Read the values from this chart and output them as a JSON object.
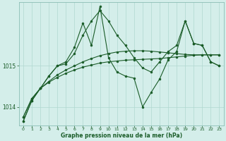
{
  "background_color": "#d4eeea",
  "plot_bg_color": "#d4eeea",
  "line_color": "#1a5c28",
  "grid_color": "#b0d8d0",
  "xlabel": "Graphe pression niveau de la mer (hPa)",
  "ylim": [
    1013.55,
    1016.55
  ],
  "xlim": [
    -0.5,
    23.5
  ],
  "yticks": [
    1014,
    1015
  ],
  "xticks": [
    0,
    1,
    2,
    3,
    4,
    5,
    6,
    7,
    8,
    9,
    10,
    11,
    12,
    13,
    14,
    15,
    16,
    17,
    18,
    19,
    20,
    21,
    22,
    23
  ],
  "series1_smooth_low": {
    "x": [
      0,
      1,
      2,
      3,
      4,
      5,
      6,
      7,
      8,
      9,
      10,
      11,
      12,
      13,
      14,
      15,
      16,
      17,
      18,
      19,
      20,
      21,
      22,
      23
    ],
    "y": [
      1013.75,
      1014.2,
      1014.45,
      1014.6,
      1014.72,
      1014.82,
      1014.9,
      1014.97,
      1015.02,
      1015.07,
      1015.1,
      1015.12,
      1015.14,
      1015.15,
      1015.16,
      1015.17,
      1015.18,
      1015.2,
      1015.22,
      1015.24,
      1015.26,
      1015.27,
      1015.27,
      1015.27
    ]
  },
  "series2_smooth_mid": {
    "x": [
      0,
      1,
      2,
      3,
      4,
      5,
      6,
      7,
      8,
      9,
      10,
      11,
      12,
      13,
      14,
      15,
      16,
      17,
      18,
      19,
      20,
      21,
      22,
      23
    ],
    "y": [
      1013.75,
      1014.2,
      1014.45,
      1014.62,
      1014.78,
      1014.9,
      1015.0,
      1015.1,
      1015.18,
      1015.25,
      1015.3,
      1015.34,
      1015.36,
      1015.37,
      1015.37,
      1015.36,
      1015.34,
      1015.32,
      1015.3,
      1015.28,
      1015.27,
      1015.27,
      1015.27,
      1015.27
    ]
  },
  "series3_main": {
    "x": [
      0,
      1,
      2,
      3,
      4,
      5,
      6,
      7,
      8,
      9,
      10,
      11,
      12,
      13,
      14,
      15,
      16,
      17,
      18,
      19,
      20,
      21,
      22,
      23
    ],
    "y": [
      1013.65,
      1014.15,
      1014.45,
      1014.75,
      1015.0,
      1015.05,
      1015.3,
      1015.75,
      1016.1,
      1016.35,
      1016.1,
      1015.75,
      1015.5,
      1015.2,
      1014.95,
      1014.85,
      1015.1,
      1015.35,
      1015.5,
      1016.1,
      1015.55,
      1015.5,
      1015.1,
      1015.0
    ]
  },
  "series4_jagged": {
    "x": [
      0,
      1,
      2,
      3,
      4,
      5,
      6,
      7,
      8,
      9,
      10,
      11,
      12,
      13,
      14,
      15,
      16,
      17,
      18,
      19,
      20,
      21,
      22,
      23
    ],
    "y": [
      1013.65,
      1014.15,
      1014.45,
      1014.75,
      1015.0,
      1015.1,
      1015.45,
      1016.05,
      1015.5,
      1016.45,
      1015.2,
      1014.85,
      1014.75,
      1014.7,
      1014.0,
      1014.35,
      1014.68,
      1015.15,
      1015.35,
      1016.1,
      1015.55,
      1015.5,
      1015.1,
      1015.0
    ]
  }
}
